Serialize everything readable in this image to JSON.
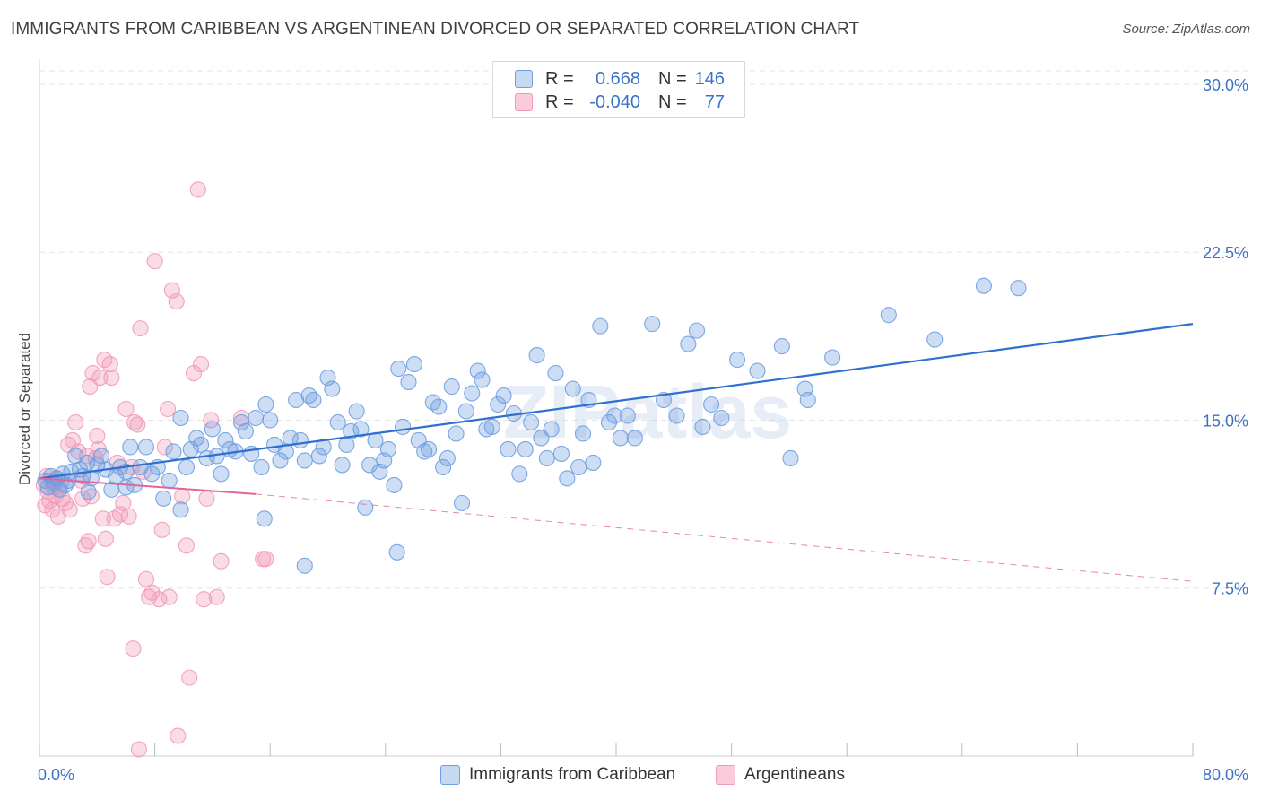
{
  "header": {
    "title": "IMMIGRANTS FROM CARIBBEAN VS ARGENTINEAN DIVORCED OR SEPARATED CORRELATION CHART",
    "source": "Source: ZipAtlas.com"
  },
  "watermark": "ZIPatlas",
  "legend": {
    "rows": [
      {
        "r_label": "R =",
        "r_value": "0.668",
        "n_label": "N =",
        "n_value": "146"
      },
      {
        "r_label": "R =",
        "r_value": "-0.040",
        "n_label": "N =",
        "n_value": "77"
      }
    ]
  },
  "bottom_legend": {
    "series1": "Immigrants from Caribbean",
    "series2": "Argentineans"
  },
  "colors": {
    "blue": "#6f9fe0",
    "blue_line": "#2e6fd0",
    "pink": "#f19ab8",
    "pink_line": "#e0669a",
    "tick_label": "#3a72c8",
    "grid": "#e3e3e3"
  },
  "chart_data": {
    "type": "scatter",
    "title": "IMMIGRANTS FROM CARIBBEAN VS ARGENTINEAN DIVORCED OR SEPARATED CORRELATION CHART",
    "xlabel": "",
    "ylabel": "Divorced or Separated",
    "xlim": [
      0,
      80
    ],
    "ylim": [
      0,
      30.8
    ],
    "x_tick_labels": [
      "0.0%",
      "80.0%"
    ],
    "y_ticks": [
      7.5,
      15.0,
      22.5,
      30.0
    ],
    "y_tick_labels": [
      "7.5%",
      "15.0%",
      "22.5%",
      "30.0%"
    ],
    "grid": true,
    "legend_position": "top-center",
    "series": [
      {
        "name": "Immigrants from Caribbean",
        "r": 0.668,
        "n": 146,
        "trend": {
          "x0": 0,
          "y0": 12.4,
          "x1": 80,
          "y1": 19.3
        },
        "points": [
          [
            0.4,
            12.3
          ],
          [
            0.6,
            12.0
          ],
          [
            0.8,
            12.5
          ],
          [
            1.0,
            12.2
          ],
          [
            1.2,
            12.4
          ],
          [
            1.4,
            11.9
          ],
          [
            1.6,
            12.6
          ],
          [
            1.8,
            12.1
          ],
          [
            2.0,
            12.3
          ],
          [
            2.2,
            12.7
          ],
          [
            2.5,
            13.4
          ],
          [
            2.8,
            12.8
          ],
          [
            3.0,
            12.5
          ],
          [
            3.3,
            13.1
          ],
          [
            3.6,
            12.4
          ],
          [
            4.0,
            13.0
          ],
          [
            4.3,
            13.4
          ],
          [
            4.6,
            12.8
          ],
          [
            5.0,
            11.9
          ],
          [
            5.3,
            12.5
          ],
          [
            5.6,
            12.9
          ],
          [
            6.0,
            12.7
          ],
          [
            6.3,
            13.8
          ],
          [
            6.6,
            12.1
          ],
          [
            7.0,
            12.9
          ],
          [
            7.4,
            13.8
          ],
          [
            7.8,
            12.6
          ],
          [
            8.2,
            12.9
          ],
          [
            8.6,
            11.5
          ],
          [
            9.0,
            12.3
          ],
          [
            9.3,
            13.6
          ],
          [
            9.8,
            11.0
          ],
          [
            10.2,
            12.9
          ],
          [
            10.5,
            13.7
          ],
          [
            10.9,
            14.2
          ],
          [
            11.2,
            13.9
          ],
          [
            11.6,
            13.3
          ],
          [
            12.0,
            14.6
          ],
          [
            12.3,
            13.4
          ],
          [
            12.6,
            12.6
          ],
          [
            12.9,
            14.1
          ],
          [
            13.2,
            13.7
          ],
          [
            13.6,
            13.6
          ],
          [
            14.0,
            14.9
          ],
          [
            14.3,
            14.5
          ],
          [
            14.7,
            13.5
          ],
          [
            15.0,
            15.1
          ],
          [
            15.4,
            12.9
          ],
          [
            15.7,
            15.7
          ],
          [
            16.0,
            15.0
          ],
          [
            16.3,
            13.9
          ],
          [
            16.7,
            13.2
          ],
          [
            17.1,
            13.6
          ],
          [
            17.4,
            14.2
          ],
          [
            17.8,
            15.9
          ],
          [
            18.1,
            14.1
          ],
          [
            18.4,
            13.2
          ],
          [
            18.7,
            16.1
          ],
          [
            19.0,
            15.9
          ],
          [
            19.4,
            13.4
          ],
          [
            19.7,
            13.8
          ],
          [
            20.0,
            16.9
          ],
          [
            20.3,
            16.4
          ],
          [
            20.7,
            14.9
          ],
          [
            21.0,
            13.0
          ],
          [
            21.3,
            13.9
          ],
          [
            21.6,
            14.5
          ],
          [
            22.0,
            15.4
          ],
          [
            22.3,
            14.6
          ],
          [
            22.6,
            11.1
          ],
          [
            22.9,
            13.0
          ],
          [
            23.3,
            14.1
          ],
          [
            23.6,
            12.7
          ],
          [
            23.9,
            13.2
          ],
          [
            24.2,
            13.7
          ],
          [
            24.6,
            12.1
          ],
          [
            24.9,
            17.3
          ],
          [
            25.2,
            14.7
          ],
          [
            25.6,
            16.7
          ],
          [
            26.0,
            17.5
          ],
          [
            26.3,
            14.1
          ],
          [
            26.7,
            13.6
          ],
          [
            27.0,
            13.7
          ],
          [
            27.3,
            15.8
          ],
          [
            27.7,
            15.6
          ],
          [
            28.0,
            12.9
          ],
          [
            28.3,
            13.3
          ],
          [
            28.6,
            16.5
          ],
          [
            28.9,
            14.4
          ],
          [
            29.3,
            11.3
          ],
          [
            29.6,
            15.4
          ],
          [
            30.0,
            16.2
          ],
          [
            30.4,
            17.2
          ],
          [
            30.7,
            16.8
          ],
          [
            31.0,
            14.6
          ],
          [
            31.4,
            14.7
          ],
          [
            31.8,
            15.7
          ],
          [
            32.2,
            16.1
          ],
          [
            32.5,
            13.7
          ],
          [
            32.9,
            15.3
          ],
          [
            33.3,
            12.6
          ],
          [
            33.7,
            13.7
          ],
          [
            34.1,
            14.9
          ],
          [
            34.5,
            17.9
          ],
          [
            34.8,
            14.2
          ],
          [
            35.2,
            13.3
          ],
          [
            35.5,
            14.6
          ],
          [
            35.8,
            17.1
          ],
          [
            36.2,
            13.5
          ],
          [
            36.6,
            12.4
          ],
          [
            37.0,
            16.4
          ],
          [
            37.4,
            12.9
          ],
          [
            37.7,
            14.4
          ],
          [
            38.1,
            15.9
          ],
          [
            38.4,
            13.1
          ],
          [
            38.9,
            19.2
          ],
          [
            39.5,
            14.9
          ],
          [
            39.9,
            15.2
          ],
          [
            40.3,
            14.2
          ],
          [
            40.8,
            15.2
          ],
          [
            41.3,
            14.2
          ],
          [
            42.5,
            19.3
          ],
          [
            43.3,
            15.9
          ],
          [
            44.2,
            15.2
          ],
          [
            45.0,
            18.4
          ],
          [
            45.6,
            19.0
          ],
          [
            46.0,
            14.7
          ],
          [
            46.6,
            15.7
          ],
          [
            47.3,
            15.1
          ],
          [
            48.4,
            17.7
          ],
          [
            49.8,
            17.2
          ],
          [
            51.5,
            18.3
          ],
          [
            52.1,
            13.3
          ],
          [
            53.1,
            16.4
          ],
          [
            53.3,
            15.9
          ],
          [
            55.0,
            17.8
          ],
          [
            58.9,
            19.7
          ],
          [
            62.1,
            18.6
          ],
          [
            65.5,
            21.0
          ],
          [
            67.9,
            20.9
          ],
          [
            18.4,
            8.5
          ],
          [
            24.8,
            9.1
          ],
          [
            15.6,
            10.6
          ],
          [
            9.8,
            15.1
          ],
          [
            3.4,
            11.8
          ],
          [
            6.0,
            12.0
          ]
        ]
      },
      {
        "name": "Argentineans",
        "r": -0.04,
        "n": 77,
        "trend": {
          "x0": 0,
          "y0": 12.4,
          "x1": 15,
          "y1": 11.7,
          "dashed_to_x": 80,
          "dashed_to_y": 7.8
        },
        "points": [
          [
            0.3,
            12.1
          ],
          [
            0.4,
            11.2
          ],
          [
            0.5,
            12.5
          ],
          [
            0.6,
            11.8
          ],
          [
            0.7,
            11.4
          ],
          [
            0.8,
            12.3
          ],
          [
            0.9,
            11.0
          ],
          [
            1.0,
            12.0
          ],
          [
            1.1,
            11.6
          ],
          [
            1.2,
            12.4
          ],
          [
            1.3,
            10.7
          ],
          [
            1.4,
            11.9
          ],
          [
            1.5,
            12.2
          ],
          [
            1.6,
            11.5
          ],
          [
            1.8,
            11.3
          ],
          [
            2.0,
            13.9
          ],
          [
            2.1,
            11.0
          ],
          [
            2.3,
            14.1
          ],
          [
            2.5,
            14.9
          ],
          [
            2.7,
            13.6
          ],
          [
            2.9,
            12.3
          ],
          [
            3.0,
            11.5
          ],
          [
            3.2,
            9.4
          ],
          [
            3.4,
            9.6
          ],
          [
            3.5,
            16.5
          ],
          [
            3.6,
            11.6
          ],
          [
            3.7,
            17.1
          ],
          [
            3.9,
            13.3
          ],
          [
            4.0,
            14.3
          ],
          [
            4.1,
            13.7
          ],
          [
            4.2,
            16.9
          ],
          [
            4.4,
            10.6
          ],
          [
            4.5,
            17.7
          ],
          [
            4.6,
            9.7
          ],
          [
            4.7,
            8.0
          ],
          [
            4.9,
            17.5
          ],
          [
            5.0,
            16.9
          ],
          [
            5.2,
            10.6
          ],
          [
            5.4,
            13.1
          ],
          [
            5.6,
            10.8
          ],
          [
            5.8,
            11.3
          ],
          [
            6.0,
            15.5
          ],
          [
            6.2,
            10.7
          ],
          [
            6.4,
            12.9
          ],
          [
            6.5,
            4.8
          ],
          [
            6.6,
            14.9
          ],
          [
            6.8,
            14.8
          ],
          [
            7.0,
            19.1
          ],
          [
            7.2,
            12.7
          ],
          [
            7.4,
            7.9
          ],
          [
            7.6,
            7.1
          ],
          [
            7.8,
            7.3
          ],
          [
            8.0,
            22.1
          ],
          [
            8.3,
            7.0
          ],
          [
            8.5,
            10.1
          ],
          [
            8.7,
            13.8
          ],
          [
            8.9,
            15.5
          ],
          [
            9.0,
            7.1
          ],
          [
            9.2,
            20.8
          ],
          [
            9.5,
            20.3
          ],
          [
            9.9,
            11.6
          ],
          [
            10.2,
            9.4
          ],
          [
            10.4,
            3.5
          ],
          [
            10.7,
            17.1
          ],
          [
            11.0,
            25.3
          ],
          [
            11.2,
            17.5
          ],
          [
            11.4,
            7.0
          ],
          [
            11.6,
            11.5
          ],
          [
            11.9,
            15.0
          ],
          [
            12.3,
            7.1
          ],
          [
            12.6,
            8.7
          ],
          [
            14.0,
            15.1
          ],
          [
            15.5,
            8.8
          ],
          [
            15.7,
            8.8
          ],
          [
            9.6,
            0.9
          ],
          [
            6.9,
            0.3
          ],
          [
            3.3,
            13.4
          ]
        ]
      }
    ]
  }
}
